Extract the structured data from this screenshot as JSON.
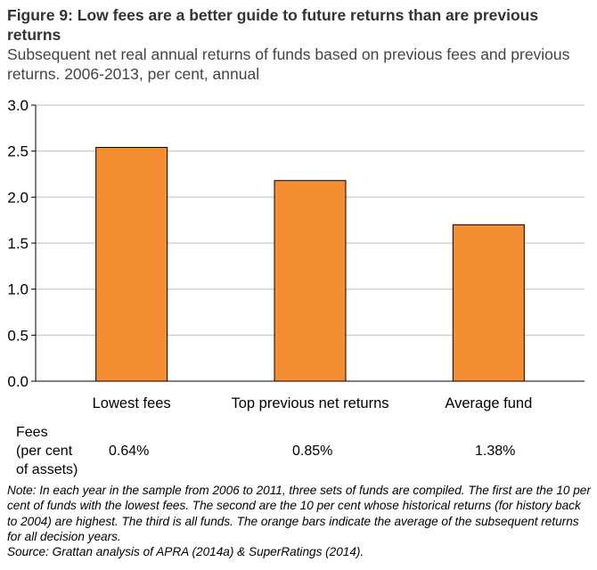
{
  "title": "Figure 9: Low fees are a better guide to future returns than are previous returns",
  "subtitle": "Subsequent net real annual returns of funds based on previous fees and previous returns. 2006-2013, per cent, annual",
  "chart_data": {
    "type": "bar",
    "categories": [
      "Lowest fees",
      "Top previous net returns",
      "Average fund"
    ],
    "values": [
      2.54,
      2.18,
      1.7
    ],
    "ylim": [
      0,
      3.0
    ],
    "yticks": [
      "0.0",
      "0.5",
      "1.0",
      "1.5",
      "2.0",
      "2.5",
      "3.0"
    ],
    "grid": true,
    "bar_color": "#F58D33"
  },
  "fees": {
    "label_lines": [
      "Fees",
      "(per cent",
      "of assets)"
    ],
    "values": [
      "0.64%",
      "0.85%",
      "1.38%"
    ]
  },
  "note": "Note: In each year in the sample from 2006 to 2011, three sets of funds are compiled. The first are the 10 per cent of funds with the lowest fees. The second are the 10 per cent whose historical returns (for history back to 2004) are highest. The third is all funds. The orange bars indicate the average of the subsequent returns for all decision years.",
  "source": "Source: Grattan analysis of APRA (2014a) & SuperRatings (2014)."
}
